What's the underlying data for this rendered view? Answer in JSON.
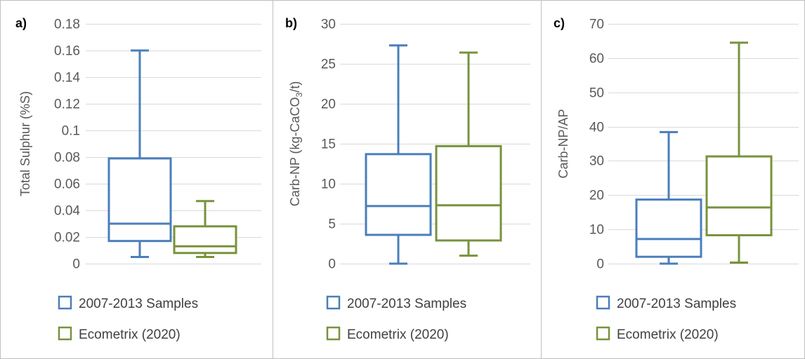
{
  "colors": {
    "series_2007": "#4a7ebb",
    "series_eco": "#77933c",
    "grid": "#d9d9d9",
    "border": "#bfbfbf"
  },
  "legend": [
    "2007-2013 Samples",
    "Ecometrix (2020)"
  ],
  "chart_data": [
    {
      "type": "box",
      "panel_label": "a)",
      "ylabel": "Total Sulphur (%S)",
      "ylabel_sub": "",
      "ylabel_after": "",
      "ylim": [
        0,
        0.18
      ],
      "yticks": [
        "0",
        "0.02",
        "0.04",
        "0.06",
        "0.08",
        "0.1",
        "0.12",
        "0.14",
        "0.16",
        "0.18"
      ],
      "ytick_values": [
        0,
        0.02,
        0.04,
        0.06,
        0.08,
        0.1,
        0.12,
        0.14,
        0.16,
        0.18
      ],
      "grid": true,
      "series": [
        {
          "name": "2007-2013 Samples",
          "min": 0.005,
          "q1": 0.017,
          "median": 0.03,
          "q3": 0.079,
          "max": 0.16
        },
        {
          "name": "Ecometrix (2020)",
          "min": 0.005,
          "q1": 0.008,
          "median": 0.013,
          "q3": 0.028,
          "max": 0.047
        }
      ]
    },
    {
      "type": "box",
      "panel_label": "b)",
      "ylabel": "Carb-NP (kg-CaCO",
      "ylabel_sub": "3",
      "ylabel_after": "/t)",
      "ylim": [
        0,
        30
      ],
      "yticks": [
        "0",
        "5",
        "10",
        "15",
        "20",
        "25",
        "30"
      ],
      "ytick_values": [
        0,
        5,
        10,
        15,
        20,
        25,
        30
      ],
      "grid": true,
      "series": [
        {
          "name": "2007-2013 Samples",
          "min": 0,
          "q1": 3.6,
          "median": 7.2,
          "q3": 13.7,
          "max": 27.3
        },
        {
          "name": "Ecometrix (2020)",
          "min": 1.0,
          "q1": 2.9,
          "median": 7.3,
          "q3": 14.7,
          "max": 26.4
        }
      ]
    },
    {
      "type": "box",
      "panel_label": "c)",
      "ylabel": "Carb-NP/AP",
      "ylabel_sub": "",
      "ylabel_after": "",
      "ylim": [
        0,
        70
      ],
      "yticks": [
        "0",
        "10",
        "20",
        "30",
        "40",
        "50",
        "60",
        "70"
      ],
      "ytick_values": [
        0,
        10,
        20,
        30,
        40,
        50,
        60,
        70
      ],
      "grid": true,
      "series": [
        {
          "name": "2007-2013 Samples",
          "min": 0,
          "q1": 2,
          "median": 7.2,
          "q3": 18.7,
          "max": 38.4
        },
        {
          "name": "Ecometrix (2020)",
          "min": 0.3,
          "q1": 8.3,
          "median": 16.4,
          "q3": 31.3,
          "max": 64.5
        }
      ]
    }
  ]
}
